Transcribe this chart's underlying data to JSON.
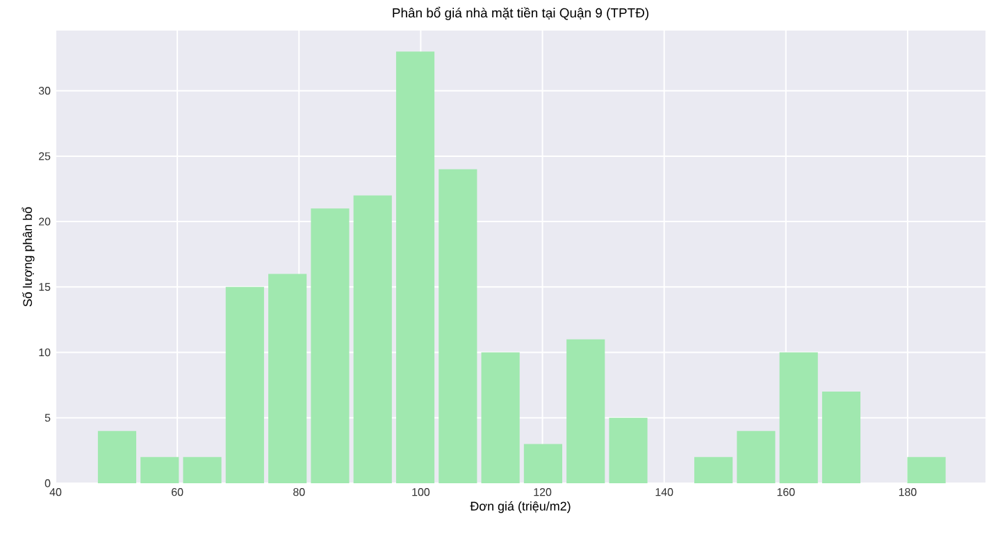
{
  "chart_data": {
    "type": "histogram",
    "title": "Phân bổ giá nhà mặt tiền tại Quận 9 (TPTĐ)",
    "xlabel": "Đơn giá (triệu/m2)",
    "ylabel": "Số lượng phân bổ",
    "bins": [
      46.6,
      53.6,
      60.6,
      67.6,
      74.6,
      81.6,
      88.6,
      95.6,
      102.6,
      109.6,
      116.6,
      123.6,
      130.6,
      137.6,
      144.6,
      151.6,
      158.6,
      165.6,
      172.6,
      179.6,
      186.6
    ],
    "values": [
      4,
      2,
      2,
      15,
      16,
      21,
      22,
      33,
      24,
      10,
      3,
      11,
      5,
      0,
      2,
      4,
      10,
      7,
      0,
      2
    ],
    "color": "#a0e8af",
    "xlim": [
      40,
      192.8
    ],
    "ylim": [
      0,
      34.6
    ],
    "xticks": [
      40,
      60,
      80,
      100,
      120,
      140,
      160,
      180
    ],
    "yticks": [
      0,
      5,
      10,
      15,
      20,
      25,
      30
    ],
    "grid": true
  }
}
